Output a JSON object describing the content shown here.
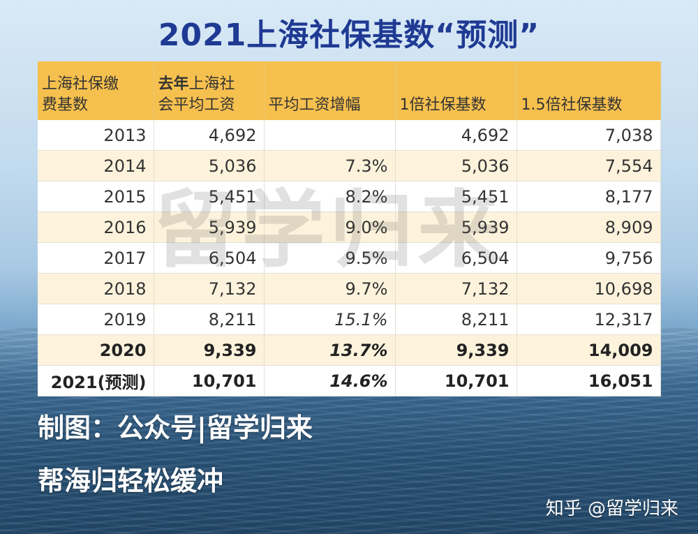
{
  "title": "2021上海社保基数“预测”",
  "table": {
    "headers": [
      {
        "line1": "上海社保缴",
        "line2": "费基数",
        "bold_prefix": ""
      },
      {
        "line1": "上海社",
        "line2": "会平均工资",
        "bold_prefix": "去年"
      },
      {
        "line1": "",
        "line2": "平均工资增幅",
        "bold_prefix": ""
      },
      {
        "line1": "",
        "line2": "1倍社保基数",
        "bold_prefix": ""
      },
      {
        "line1": "",
        "line2": "1.5倍社保基数",
        "bold_prefix": ""
      }
    ],
    "rows": [
      {
        "year": "2013",
        "avg_wage": "4,692",
        "growth": "",
        "base_1x": "4,692",
        "base_15x": "7,038"
      },
      {
        "year": "2014",
        "avg_wage": "5,036",
        "growth": "7.3%",
        "base_1x": "5,036",
        "base_15x": "7,554"
      },
      {
        "year": "2015",
        "avg_wage": "5,451",
        "growth": "8.2%",
        "base_1x": "5,451",
        "base_15x": "8,177"
      },
      {
        "year": "2016",
        "avg_wage": "5,939",
        "growth": "9.0%",
        "base_1x": "5,939",
        "base_15x": "8,909"
      },
      {
        "year": "2017",
        "avg_wage": "6,504",
        "growth": "9.5%",
        "base_1x": "6,504",
        "base_15x": "9,756"
      },
      {
        "year": "2018",
        "avg_wage": "7,132",
        "growth": "9.7%",
        "base_1x": "7,132",
        "base_15x": "10,698"
      },
      {
        "year": "2019",
        "avg_wage": "8,211",
        "growth": "15.1%",
        "base_1x": "8,211",
        "base_15x": "12,317"
      },
      {
        "year": "2020",
        "avg_wage": "9,339",
        "growth": "13.7%",
        "base_1x": "9,339",
        "base_15x": "14,009"
      },
      {
        "year": "2021(预测)",
        "avg_wage": "10,701",
        "growth": "14.6%",
        "base_1x": "10,701",
        "base_15x": "16,051"
      }
    ]
  },
  "watermark": "留学归来",
  "captions": {
    "line1": "制图：公众号|留学归来",
    "line2": "帮海归轻松缓冲"
  },
  "credit": "知乎 @留学归来",
  "colors": {
    "title": "#1f3a93",
    "header_bg": "#f6c04e",
    "row_alt_bg": "#fdf3dc"
  }
}
